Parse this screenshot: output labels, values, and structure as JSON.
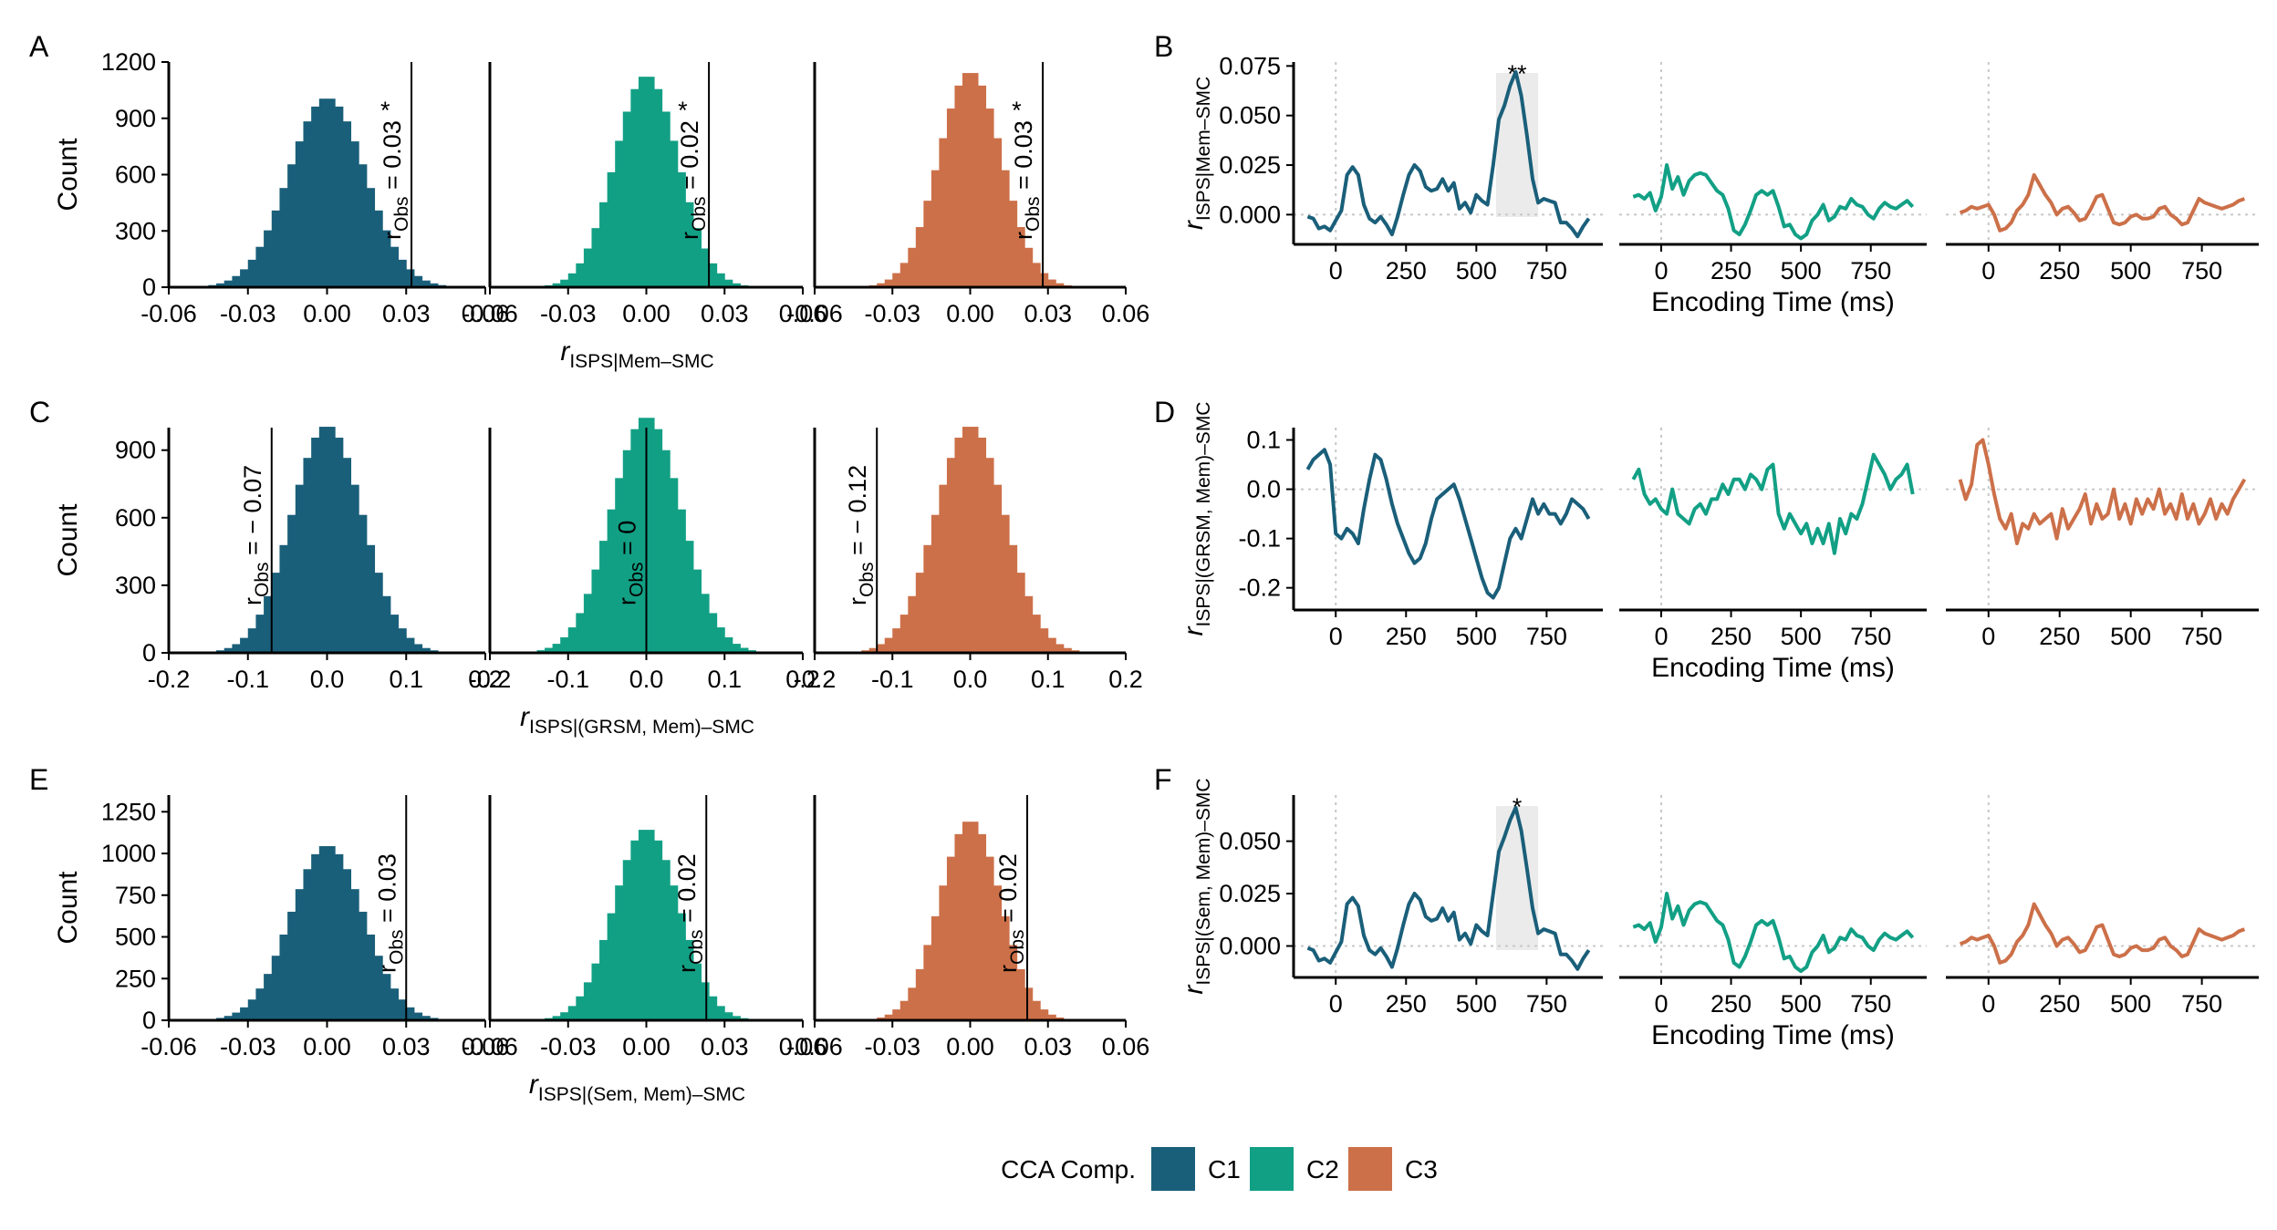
{
  "colors": {
    "C1": "#1a5f7a",
    "C2": "#12a085",
    "C3": "#cc7049"
  },
  "legend": {
    "title": "CCA Comp.",
    "items": [
      "C1",
      "C2",
      "C3"
    ]
  },
  "chart_data": [
    {
      "panel": "A",
      "type": "bar",
      "ylabel": "Count",
      "xlabel_main": "r",
      "xlabel_sub": "ISPS|Mem–SMC",
      "xlim": [
        -0.06,
        0.06
      ],
      "ylim": [
        0,
        1200
      ],
      "xticks": [
        "-0.06",
        "-0.03",
        "0.00",
        "0.03",
        "0.06"
      ],
      "xtick_values": [
        -0.06,
        -0.03,
        0,
        0.03,
        0.06
      ],
      "yticks": [
        "0",
        "300",
        "600",
        "900",
        "1200"
      ],
      "ytick_values": [
        0,
        300,
        600,
        900,
        1200
      ],
      "series": [
        {
          "name": "C1",
          "sd": 0.0145,
          "peak": 1010,
          "observed": 0.032,
          "obs_label": "= 0.03",
          "star": "*"
        },
        {
          "name": "C2",
          "sd": 0.0122,
          "peak": 1130,
          "observed": 0.024,
          "obs_label": "= 0.02",
          "star": "*"
        },
        {
          "name": "C3",
          "sd": 0.0122,
          "peak": 1150,
          "observed": 0.028,
          "obs_label": "= 0.03",
          "star": "*"
        }
      ]
    },
    {
      "panel": "C",
      "type": "bar",
      "ylabel": "Count",
      "xlabel_main": "r",
      "xlabel_sub": "ISPS|(GRSM, Mem)–SMC",
      "xlim": [
        -0.2,
        0.2
      ],
      "ylim": [
        0,
        1000
      ],
      "xticks": [
        "-0.2",
        "-0.1",
        "0.0",
        "0.1",
        "0.2"
      ],
      "xtick_values": [
        -0.2,
        -0.1,
        0,
        0.1,
        0.2
      ],
      "yticks": [
        "0",
        "300",
        "600",
        "900"
      ],
      "ytick_values": [
        0,
        300,
        600,
        900
      ],
      "series": [
        {
          "name": "C1",
          "sd": 0.045,
          "peak": 1010,
          "observed": -0.07,
          "obs_label": "= − 0.07",
          "star": ""
        },
        {
          "name": "C2",
          "sd": 0.045,
          "peak": 1050,
          "observed": 0.0,
          "obs_label": "= 0",
          "star": ""
        },
        {
          "name": "C3",
          "sd": 0.045,
          "peak": 1010,
          "observed": -0.12,
          "obs_label": "= − 0.12",
          "star": ""
        }
      ]
    },
    {
      "panel": "E",
      "type": "bar",
      "ylabel": "Count",
      "xlabel_main": "r",
      "xlabel_sub": "ISPS|(Sem, Mem)–SMC",
      "xlim": [
        -0.06,
        0.06
      ],
      "ylim": [
        0,
        1350
      ],
      "xticks": [
        "-0.06",
        "-0.03",
        "0.00",
        "0.03",
        "0.06"
      ],
      "xtick_values": [
        -0.06,
        -0.03,
        0,
        0.03,
        0.06
      ],
      "yticks": [
        "0",
        "250",
        "500",
        "750",
        "1000",
        "1250"
      ],
      "ytick_values": [
        0,
        250,
        500,
        750,
        1000,
        1250
      ],
      "series": [
        {
          "name": "C1",
          "sd": 0.0138,
          "peak": 1050,
          "observed": 0.03,
          "obs_label": "= 0.03",
          "star": ""
        },
        {
          "name": "C2",
          "sd": 0.0125,
          "peak": 1150,
          "observed": 0.023,
          "obs_label": "= 0.02",
          "star": ""
        },
        {
          "name": "C3",
          "sd": 0.0118,
          "peak": 1200,
          "observed": 0.022,
          "obs_label": "= 0.02",
          "star": ""
        }
      ]
    },
    {
      "panel": "B",
      "type": "line",
      "ylabel_main": "r",
      "ylabel_sub": "ISPS|Mem–SMC",
      "xlabel": "Encoding Time (ms)",
      "xlim": [
        -150,
        950
      ],
      "ylim": [
        -0.015,
        0.077
      ],
      "xticks": [
        "0",
        "250",
        "500",
        "750"
      ],
      "xtick_values": [
        0,
        250,
        500,
        750
      ],
      "yticks": [
        "0.000",
        "0.025",
        "0.050",
        "0.075"
      ],
      "ytick_values": [
        0,
        0.025,
        0.05,
        0.075
      ],
      "x": [
        -100,
        -80,
        -60,
        -40,
        -20,
        0,
        20,
        40,
        60,
        80,
        100,
        120,
        140,
        160,
        180,
        200,
        220,
        240,
        260,
        280,
        300,
        320,
        340,
        360,
        380,
        400,
        420,
        440,
        460,
        480,
        500,
        520,
        540,
        560,
        580,
        600,
        620,
        640,
        660,
        680,
        700,
        720,
        740,
        760,
        780,
        800,
        820,
        840,
        860,
        880,
        900
      ],
      "highlight": {
        "x0": 570,
        "x1": 720,
        "label": "**"
      },
      "series": [
        {
          "name": "C1",
          "values": [
            -0.001,
            -0.002,
            -0.007,
            -0.006,
            -0.008,
            -0.003,
            0.002,
            0.02,
            0.024,
            0.02,
            0.005,
            -0.002,
            -0.004,
            -0.001,
            -0.005,
            -0.01,
            -0.001,
            0.01,
            0.02,
            0.025,
            0.022,
            0.014,
            0.012,
            0.013,
            0.018,
            0.012,
            0.016,
            0.003,
            0.006,
            0.001,
            0.01,
            0.007,
            0.005,
            0.025,
            0.048,
            0.055,
            0.065,
            0.072,
            0.06,
            0.04,
            0.018,
            0.006,
            0.008,
            0.007,
            0.006,
            -0.004,
            -0.004,
            -0.007,
            -0.011,
            -0.006,
            -0.002
          ]
        },
        {
          "name": "C2",
          "values": [
            0.009,
            0.01,
            0.008,
            0.011,
            0.002,
            0.009,
            0.025,
            0.013,
            0.019,
            0.01,
            0.017,
            0.02,
            0.021,
            0.02,
            0.016,
            0.012,
            0.01,
            0.003,
            -0.008,
            -0.01,
            -0.005,
            0.002,
            0.01,
            0.012,
            0.01,
            0.012,
            0.004,
            -0.006,
            -0.005,
            -0.01,
            -0.012,
            -0.01,
            -0.003,
            0.0,
            0.005,
            -0.003,
            -0.001,
            0.004,
            0.003,
            0.008,
            0.005,
            0.004,
            0.0,
            -0.002,
            0.003,
            0.006,
            0.004,
            0.003,
            0.005,
            0.007,
            0.004
          ]
        },
        {
          "name": "C3",
          "values": [
            0.001,
            0.002,
            0.004,
            0.003,
            0.004,
            0.005,
            0.0,
            -0.008,
            -0.007,
            -0.004,
            0.002,
            0.005,
            0.01,
            0.02,
            0.015,
            0.01,
            0.006,
            0.0,
            0.003,
            0.004,
            0.001,
            -0.003,
            -0.002,
            0.003,
            0.009,
            0.01,
            0.003,
            -0.004,
            -0.005,
            -0.004,
            -0.001,
            0.0,
            -0.002,
            -0.002,
            -0.001,
            0.003,
            0.004,
            0.0,
            -0.002,
            -0.005,
            -0.004,
            0.002,
            0.008,
            0.006,
            0.005,
            0.004,
            0.003,
            0.004,
            0.005,
            0.007,
            0.008
          ]
        }
      ]
    },
    {
      "panel": "D",
      "type": "line",
      "ylabel_main": "r",
      "ylabel_sub": "ISPS|(GRSM, Mem)–SMC",
      "xlabel": "Encoding Time (ms)",
      "xlim": [
        -150,
        950
      ],
      "ylim": [
        -0.245,
        0.125
      ],
      "xticks": [
        "0",
        "250",
        "500",
        "750"
      ],
      "xtick_values": [
        0,
        250,
        500,
        750
      ],
      "yticks": [
        "-0.2",
        "-0.1",
        "0.0",
        "0.1"
      ],
      "ytick_values": [
        -0.2,
        -0.1,
        0,
        0.1
      ],
      "x": [
        -100,
        -80,
        -60,
        -40,
        -20,
        0,
        20,
        40,
        60,
        80,
        100,
        120,
        140,
        160,
        180,
        200,
        220,
        240,
        260,
        280,
        300,
        320,
        340,
        360,
        380,
        400,
        420,
        440,
        460,
        480,
        500,
        520,
        540,
        560,
        580,
        600,
        620,
        640,
        660,
        680,
        700,
        720,
        740,
        760,
        780,
        800,
        820,
        840,
        860,
        880,
        900
      ],
      "highlight": null,
      "series": [
        {
          "name": "C1",
          "values": [
            0.04,
            0.06,
            0.07,
            0.08,
            0.05,
            -0.09,
            -0.1,
            -0.08,
            -0.09,
            -0.11,
            -0.04,
            0.02,
            0.07,
            0.06,
            0.02,
            -0.03,
            -0.07,
            -0.1,
            -0.13,
            -0.15,
            -0.14,
            -0.11,
            -0.06,
            -0.02,
            -0.01,
            0.0,
            0.01,
            -0.02,
            -0.06,
            -0.1,
            -0.14,
            -0.18,
            -0.21,
            -0.22,
            -0.2,
            -0.15,
            -0.1,
            -0.08,
            -0.1,
            -0.06,
            -0.02,
            -0.05,
            -0.03,
            -0.05,
            -0.05,
            -0.07,
            -0.05,
            -0.02,
            -0.03,
            -0.04,
            -0.06
          ]
        },
        {
          "name": "C2",
          "values": [
            0.02,
            0.04,
            -0.01,
            -0.03,
            -0.02,
            -0.04,
            -0.05,
            0.0,
            -0.05,
            -0.06,
            -0.07,
            -0.04,
            -0.03,
            -0.05,
            -0.02,
            -0.02,
            0.01,
            -0.01,
            0.02,
            0.02,
            0.0,
            0.03,
            0.02,
            0.0,
            0.04,
            0.05,
            -0.05,
            -0.08,
            -0.05,
            -0.07,
            -0.09,
            -0.07,
            -0.11,
            -0.08,
            -0.11,
            -0.07,
            -0.13,
            -0.06,
            -0.09,
            -0.05,
            -0.06,
            -0.03,
            0.02,
            0.07,
            0.05,
            0.03,
            0.0,
            0.02,
            0.03,
            0.05,
            -0.01
          ]
        },
        {
          "name": "C3",
          "values": [
            0.02,
            -0.02,
            0.01,
            0.09,
            0.1,
            0.05,
            -0.01,
            -0.06,
            -0.08,
            -0.05,
            -0.11,
            -0.07,
            -0.08,
            -0.05,
            -0.07,
            -0.06,
            -0.05,
            -0.1,
            -0.04,
            -0.08,
            -0.06,
            -0.04,
            -0.01,
            -0.07,
            -0.03,
            -0.06,
            -0.05,
            0.0,
            -0.06,
            -0.03,
            -0.07,
            -0.02,
            -0.05,
            -0.02,
            -0.04,
            0.0,
            -0.05,
            -0.03,
            -0.06,
            -0.01,
            -0.06,
            -0.03,
            -0.07,
            -0.05,
            -0.02,
            -0.06,
            -0.03,
            -0.05,
            -0.02,
            0.0,
            0.02
          ]
        }
      ]
    },
    {
      "panel": "F",
      "type": "line",
      "ylabel_main": "r",
      "ylabel_sub": "ISPS|(Sem, Mem)–SMC",
      "xlabel": "Encoding Time (ms)",
      "xlim": [
        -150,
        950
      ],
      "ylim": [
        -0.015,
        0.072
      ],
      "xticks": [
        "0",
        "250",
        "500",
        "750"
      ],
      "xtick_values": [
        0,
        250,
        500,
        750
      ],
      "yticks": [
        "0.000",
        "0.025",
        "0.050"
      ],
      "ytick_values": [
        0,
        0.025,
        0.05
      ],
      "x": [
        -100,
        -80,
        -60,
        -40,
        -20,
        0,
        20,
        40,
        60,
        80,
        100,
        120,
        140,
        160,
        180,
        200,
        220,
        240,
        260,
        280,
        300,
        320,
        340,
        360,
        380,
        400,
        420,
        440,
        460,
        480,
        500,
        520,
        540,
        560,
        580,
        600,
        620,
        640,
        660,
        680,
        700,
        720,
        740,
        760,
        780,
        800,
        820,
        840,
        860,
        880,
        900
      ],
      "highlight": {
        "x0": 570,
        "x1": 720,
        "label": "*"
      },
      "series": [
        {
          "name": "C1",
          "values": [
            -0.001,
            -0.002,
            -0.007,
            -0.006,
            -0.008,
            -0.003,
            0.002,
            0.02,
            0.023,
            0.019,
            0.005,
            -0.002,
            -0.004,
            -0.001,
            -0.005,
            -0.01,
            -0.001,
            0.01,
            0.02,
            0.025,
            0.022,
            0.014,
            0.012,
            0.013,
            0.018,
            0.012,
            0.016,
            0.003,
            0.006,
            0.001,
            0.01,
            0.007,
            0.005,
            0.025,
            0.045,
            0.052,
            0.06,
            0.066,
            0.055,
            0.037,
            0.018,
            0.006,
            0.008,
            0.007,
            0.006,
            -0.004,
            -0.004,
            -0.007,
            -0.011,
            -0.006,
            -0.002
          ]
        },
        {
          "name": "C2",
          "values": [
            0.009,
            0.01,
            0.008,
            0.011,
            0.002,
            0.009,
            0.025,
            0.013,
            0.019,
            0.01,
            0.017,
            0.02,
            0.021,
            0.02,
            0.016,
            0.012,
            0.01,
            0.003,
            -0.008,
            -0.01,
            -0.005,
            0.002,
            0.01,
            0.012,
            0.01,
            0.012,
            0.004,
            -0.006,
            -0.005,
            -0.01,
            -0.012,
            -0.01,
            -0.003,
            0.0,
            0.005,
            -0.003,
            -0.001,
            0.004,
            0.003,
            0.008,
            0.005,
            0.004,
            0.0,
            -0.002,
            0.003,
            0.006,
            0.004,
            0.003,
            0.005,
            0.007,
            0.004
          ]
        },
        {
          "name": "C3",
          "values": [
            0.001,
            0.002,
            0.004,
            0.003,
            0.004,
            0.005,
            0.0,
            -0.008,
            -0.007,
            -0.004,
            0.002,
            0.005,
            0.01,
            0.02,
            0.015,
            0.01,
            0.006,
            0.0,
            0.003,
            0.004,
            0.001,
            -0.003,
            -0.002,
            0.003,
            0.009,
            0.01,
            0.003,
            -0.004,
            -0.005,
            -0.004,
            -0.001,
            0.0,
            -0.002,
            -0.002,
            -0.001,
            0.003,
            0.004,
            0.0,
            -0.002,
            -0.005,
            -0.004,
            0.002,
            0.008,
            0.006,
            0.005,
            0.004,
            0.003,
            0.004,
            0.005,
            0.007,
            0.008
          ]
        }
      ]
    }
  ]
}
